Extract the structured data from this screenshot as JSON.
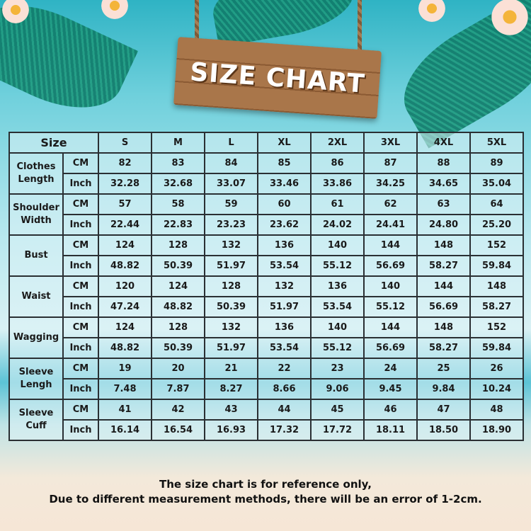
{
  "title": "SIZE CHART",
  "header": {
    "size_label": "Size",
    "sizes": [
      "S",
      "M",
      "L",
      "XL",
      "2XL",
      "3XL",
      "4XL",
      "5XL"
    ]
  },
  "rows": [
    {
      "label": [
        "Clothes",
        "Length"
      ],
      "cm": [
        "82",
        "83",
        "84",
        "85",
        "86",
        "87",
        "88",
        "89"
      ],
      "inch": [
        "32.28",
        "32.68",
        "33.07",
        "33.46",
        "33.86",
        "34.25",
        "34.65",
        "35.04"
      ]
    },
    {
      "label": [
        "Shoulder",
        "Width"
      ],
      "cm": [
        "57",
        "58",
        "59",
        "60",
        "61",
        "62",
        "63",
        "64"
      ],
      "inch": [
        "22.44",
        "22.83",
        "23.23",
        "23.62",
        "24.02",
        "24.41",
        "24.80",
        "25.20"
      ]
    },
    {
      "label": [
        "Bust"
      ],
      "cm": [
        "124",
        "128",
        "132",
        "136",
        "140",
        "144",
        "148",
        "152"
      ],
      "inch": [
        "48.82",
        "50.39",
        "51.97",
        "53.54",
        "55.12",
        "56.69",
        "58.27",
        "59.84"
      ]
    },
    {
      "label": [
        "Waist"
      ],
      "cm": [
        "120",
        "124",
        "128",
        "132",
        "136",
        "140",
        "144",
        "148"
      ],
      "inch": [
        "47.24",
        "48.82",
        "50.39",
        "51.97",
        "53.54",
        "55.12",
        "56.69",
        "58.27"
      ]
    },
    {
      "label": [
        "Wagging"
      ],
      "cm": [
        "124",
        "128",
        "132",
        "136",
        "140",
        "144",
        "148",
        "152"
      ],
      "inch": [
        "48.82",
        "50.39",
        "51.97",
        "53.54",
        "55.12",
        "56.69",
        "58.27",
        "59.84"
      ]
    },
    {
      "label": [
        "Sleeve",
        "Lengh"
      ],
      "cm": [
        "19",
        "20",
        "21",
        "22",
        "23",
        "24",
        "25",
        "26"
      ],
      "inch": [
        "7.48",
        "7.87",
        "8.27",
        "8.66",
        "9.06",
        "9.45",
        "9.84",
        "10.24"
      ]
    },
    {
      "label": [
        "Sleeve",
        "Cuff"
      ],
      "cm": [
        "41",
        "42",
        "43",
        "44",
        "45",
        "46",
        "47",
        "48"
      ],
      "inch": [
        "16.14",
        "16.54",
        "16.93",
        "17.32",
        "17.72",
        "18.11",
        "18.50",
        "18.90"
      ]
    }
  ],
  "units": {
    "cm": "CM",
    "inch": "Inch"
  },
  "notes": [
    "The size chart is for reference only,",
    "Due to different measurement methods, there will be an error of 1-2cm."
  ]
}
